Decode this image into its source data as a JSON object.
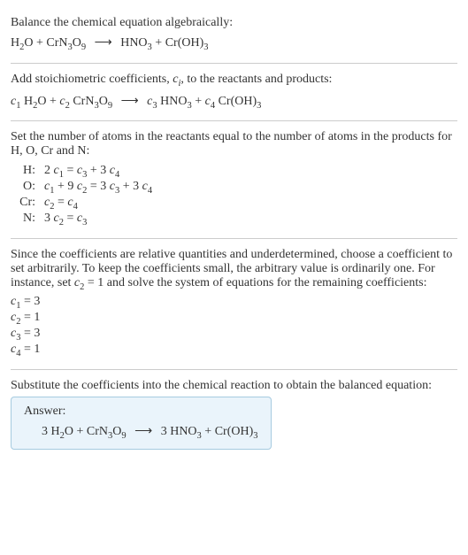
{
  "section1": {
    "title": "Balance the chemical equation algebraically:",
    "lhs1": "H",
    "lhs1s": "2",
    "lhs1b": "O + CrN",
    "lhs1s2": "3",
    "lhs1c": "O",
    "lhs1s3": "9",
    "arrow": "⟶",
    "rhs1": "HNO",
    "rhs1s": "3",
    "rhs1b": " + Cr(OH)",
    "rhs1s2": "3"
  },
  "section2": {
    "title1": "Add stoichiometric coefficients, ",
    "ci": "c",
    "cis": "i",
    "title2": ", to the reactants and products:",
    "c1": "c",
    "c1s": "1",
    "sp1": " H",
    "s2": "2",
    "sp2": "O + ",
    "c2": "c",
    "c2s": "2",
    "sp3": " CrN",
    "s3": "3",
    "sp4": "O",
    "s9": "9",
    "arrow": "⟶",
    "c3": "c",
    "c3s": "3",
    "sp5": " HNO",
    "s3b": "3",
    "sp6": " + ",
    "c4": "c",
    "c4s": "4",
    "sp7": " Cr(OH)",
    "s3c": "3"
  },
  "section3": {
    "title": "Set the number of atoms in the reactants equal to the number of atoms in the products for H, O, Cr and N:",
    "rows": [
      {
        "label": "H:",
        "eq_a": "2 ",
        "c1": "c",
        "c1s": "1",
        "mid": " = ",
        "c3": "c",
        "c3s": "3",
        "mid2": " + 3 ",
        "c4": "c",
        "c4s": "4"
      },
      {
        "label": "O:",
        "eq_a": "",
        "c1": "c",
        "c1s": "1",
        "mid": " + 9 ",
        "c2": "c",
        "c2s": "2",
        "mid2": " = 3 ",
        "c3": "c",
        "c3s": "3",
        "mid3": " + 3 ",
        "c4": "c",
        "c4s": "4"
      },
      {
        "label": "Cr:",
        "eq_a": "",
        "c1": "c",
        "c1s": "2",
        "mid": " = ",
        "c3": "c",
        "c3s": "4"
      },
      {
        "label": "N:",
        "eq_a": "3 ",
        "c1": "c",
        "c1s": "2",
        "mid": " = ",
        "c3": "c",
        "c3s": "3"
      }
    ]
  },
  "section4": {
    "text1": "Since the coefficients are relative quantities and underdetermined, choose a coefficient to set arbitrarily. To keep the coefficients small, the arbitrary value is ordinarily one. For instance, set ",
    "c2": "c",
    "c2s": "2",
    "text2": " = 1 and solve the system of equations for the remaining coefficients:",
    "coeffs": [
      {
        "c": "c",
        "cs": "1",
        "eq": " = 3"
      },
      {
        "c": "c",
        "cs": "2",
        "eq": " = 1"
      },
      {
        "c": "c",
        "cs": "3",
        "eq": " = 3"
      },
      {
        "c": "c",
        "cs": "4",
        "eq": " = 1"
      }
    ]
  },
  "section5": {
    "title": "Substitute the coefficients into the chemical reaction to obtain the balanced equation:",
    "answer_label": "Answer:",
    "eq_a": "3 H",
    "s2": "2",
    "eq_b": "O + CrN",
    "s3": "3",
    "eq_c": "O",
    "s9": "9",
    "arrow": "⟶",
    "eq_d": "3 HNO",
    "s3b": "3",
    "eq_e": " + Cr(OH)",
    "s3c": "3"
  }
}
